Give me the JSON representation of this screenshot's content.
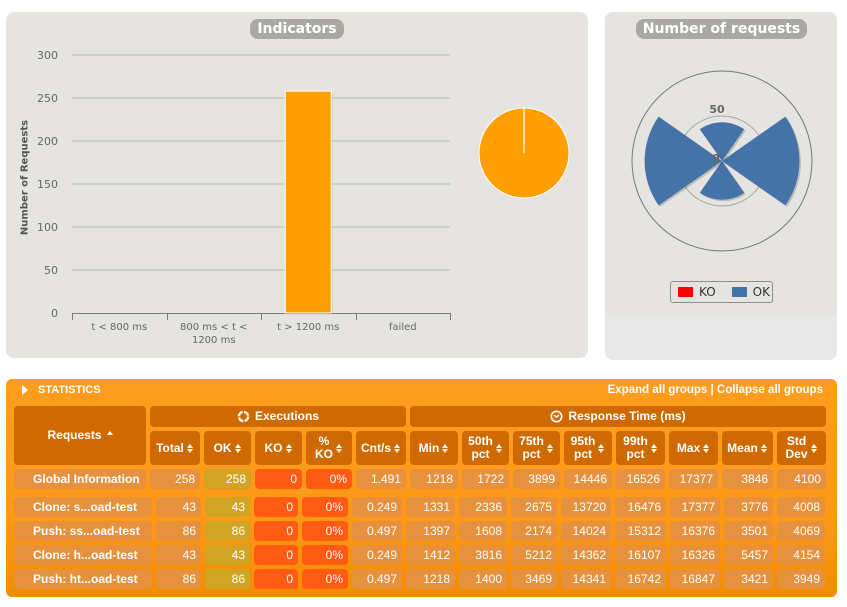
{
  "indicators": {
    "title": "Indicators"
  },
  "requests_chart": {
    "title": "Number of requests",
    "legend": [
      {
        "label": "KO",
        "color": "#FF0000"
      },
      {
        "label": "OK",
        "color": "#4572A7"
      }
    ]
  },
  "chart_data": [
    {
      "id": "indicators",
      "type": "bar",
      "title": "Indicators",
      "categories": [
        "t < 800 ms",
        "800 ms < t < 1200 ms",
        "t > 1200 ms",
        "failed"
      ],
      "values": [
        0,
        0,
        258,
        0
      ],
      "xlabel": "",
      "ylabel": "Number of Requests",
      "ylim": [
        0,
        300
      ],
      "yticks": [
        0,
        50,
        100,
        150,
        200,
        250,
        300
      ],
      "grid": true,
      "color": "#FFA000"
    },
    {
      "id": "indicators-pie",
      "type": "pie",
      "slices": [
        {
          "label": "t < 800 ms",
          "value": 0
        },
        {
          "label": "800 ms < t < 1200 ms",
          "value": 0
        },
        {
          "label": "t > 1200 ms",
          "value": 258
        },
        {
          "label": "failed",
          "value": 0
        }
      ],
      "color": "#FFA000"
    },
    {
      "id": "number-of-requests",
      "type": "bar",
      "polar": true,
      "title": "Number of requests",
      "categories": [
        "Clone: s...oad-test",
        "Push: ss...oad-test",
        "Clone: h...oad-test",
        "Push: ht...oad-test"
      ],
      "series": [
        {
          "name": "KO",
          "values": [
            0,
            0,
            0,
            0
          ],
          "color": "#FF0000"
        },
        {
          "name": "OK",
          "values": [
            43,
            86,
            43,
            86
          ],
          "color": "#4572A7"
        }
      ],
      "rlim": [
        0,
        100
      ],
      "rticks": [
        0,
        50
      ],
      "legend": "bottom"
    }
  ],
  "statistics": {
    "title": "STATISTICS",
    "expand_label": "Expand all groups",
    "separator": " | ",
    "collapse_label": "Collapse all groups",
    "requests_header": "Requests",
    "executions_header": "Executions",
    "response_time_header": "Response Time (ms)",
    "columns": [
      "Total",
      "OK",
      "KO",
      "%\nKO",
      "Cnt/s",
      "Min",
      "50th\npct",
      "75th\npct",
      "95th\npct",
      "99th\npct",
      "Max",
      "Mean",
      "Std\nDev"
    ],
    "global": {
      "name": "Global Information",
      "values": [
        "258",
        "258",
        "0",
        "0%",
        "1.491",
        "1218",
        "1722",
        "3899",
        "14446",
        "16526",
        "17377",
        "3846",
        "4100"
      ]
    },
    "rows": [
      {
        "name": "Clone: s...oad-test",
        "values": [
          "43",
          "43",
          "0",
          "0%",
          "0.249",
          "1331",
          "2336",
          "2675",
          "13720",
          "16476",
          "17377",
          "3776",
          "4008"
        ]
      },
      {
        "name": "Push: ss...oad-test",
        "values": [
          "86",
          "86",
          "0",
          "0%",
          "0.497",
          "1397",
          "1608",
          "2174",
          "14024",
          "15312",
          "16376",
          "3501",
          "4069"
        ]
      },
      {
        "name": "Clone: h...oad-test",
        "values": [
          "43",
          "43",
          "0",
          "0%",
          "0.249",
          "1412",
          "3816",
          "5212",
          "14362",
          "16107",
          "16326",
          "5457",
          "4154"
        ]
      },
      {
        "name": "Push: ht...oad-test",
        "values": [
          "86",
          "86",
          "0",
          "0%",
          "0.497",
          "1218",
          "1400",
          "3469",
          "14341",
          "16742",
          "16847",
          "3421",
          "3949"
        ]
      }
    ]
  }
}
